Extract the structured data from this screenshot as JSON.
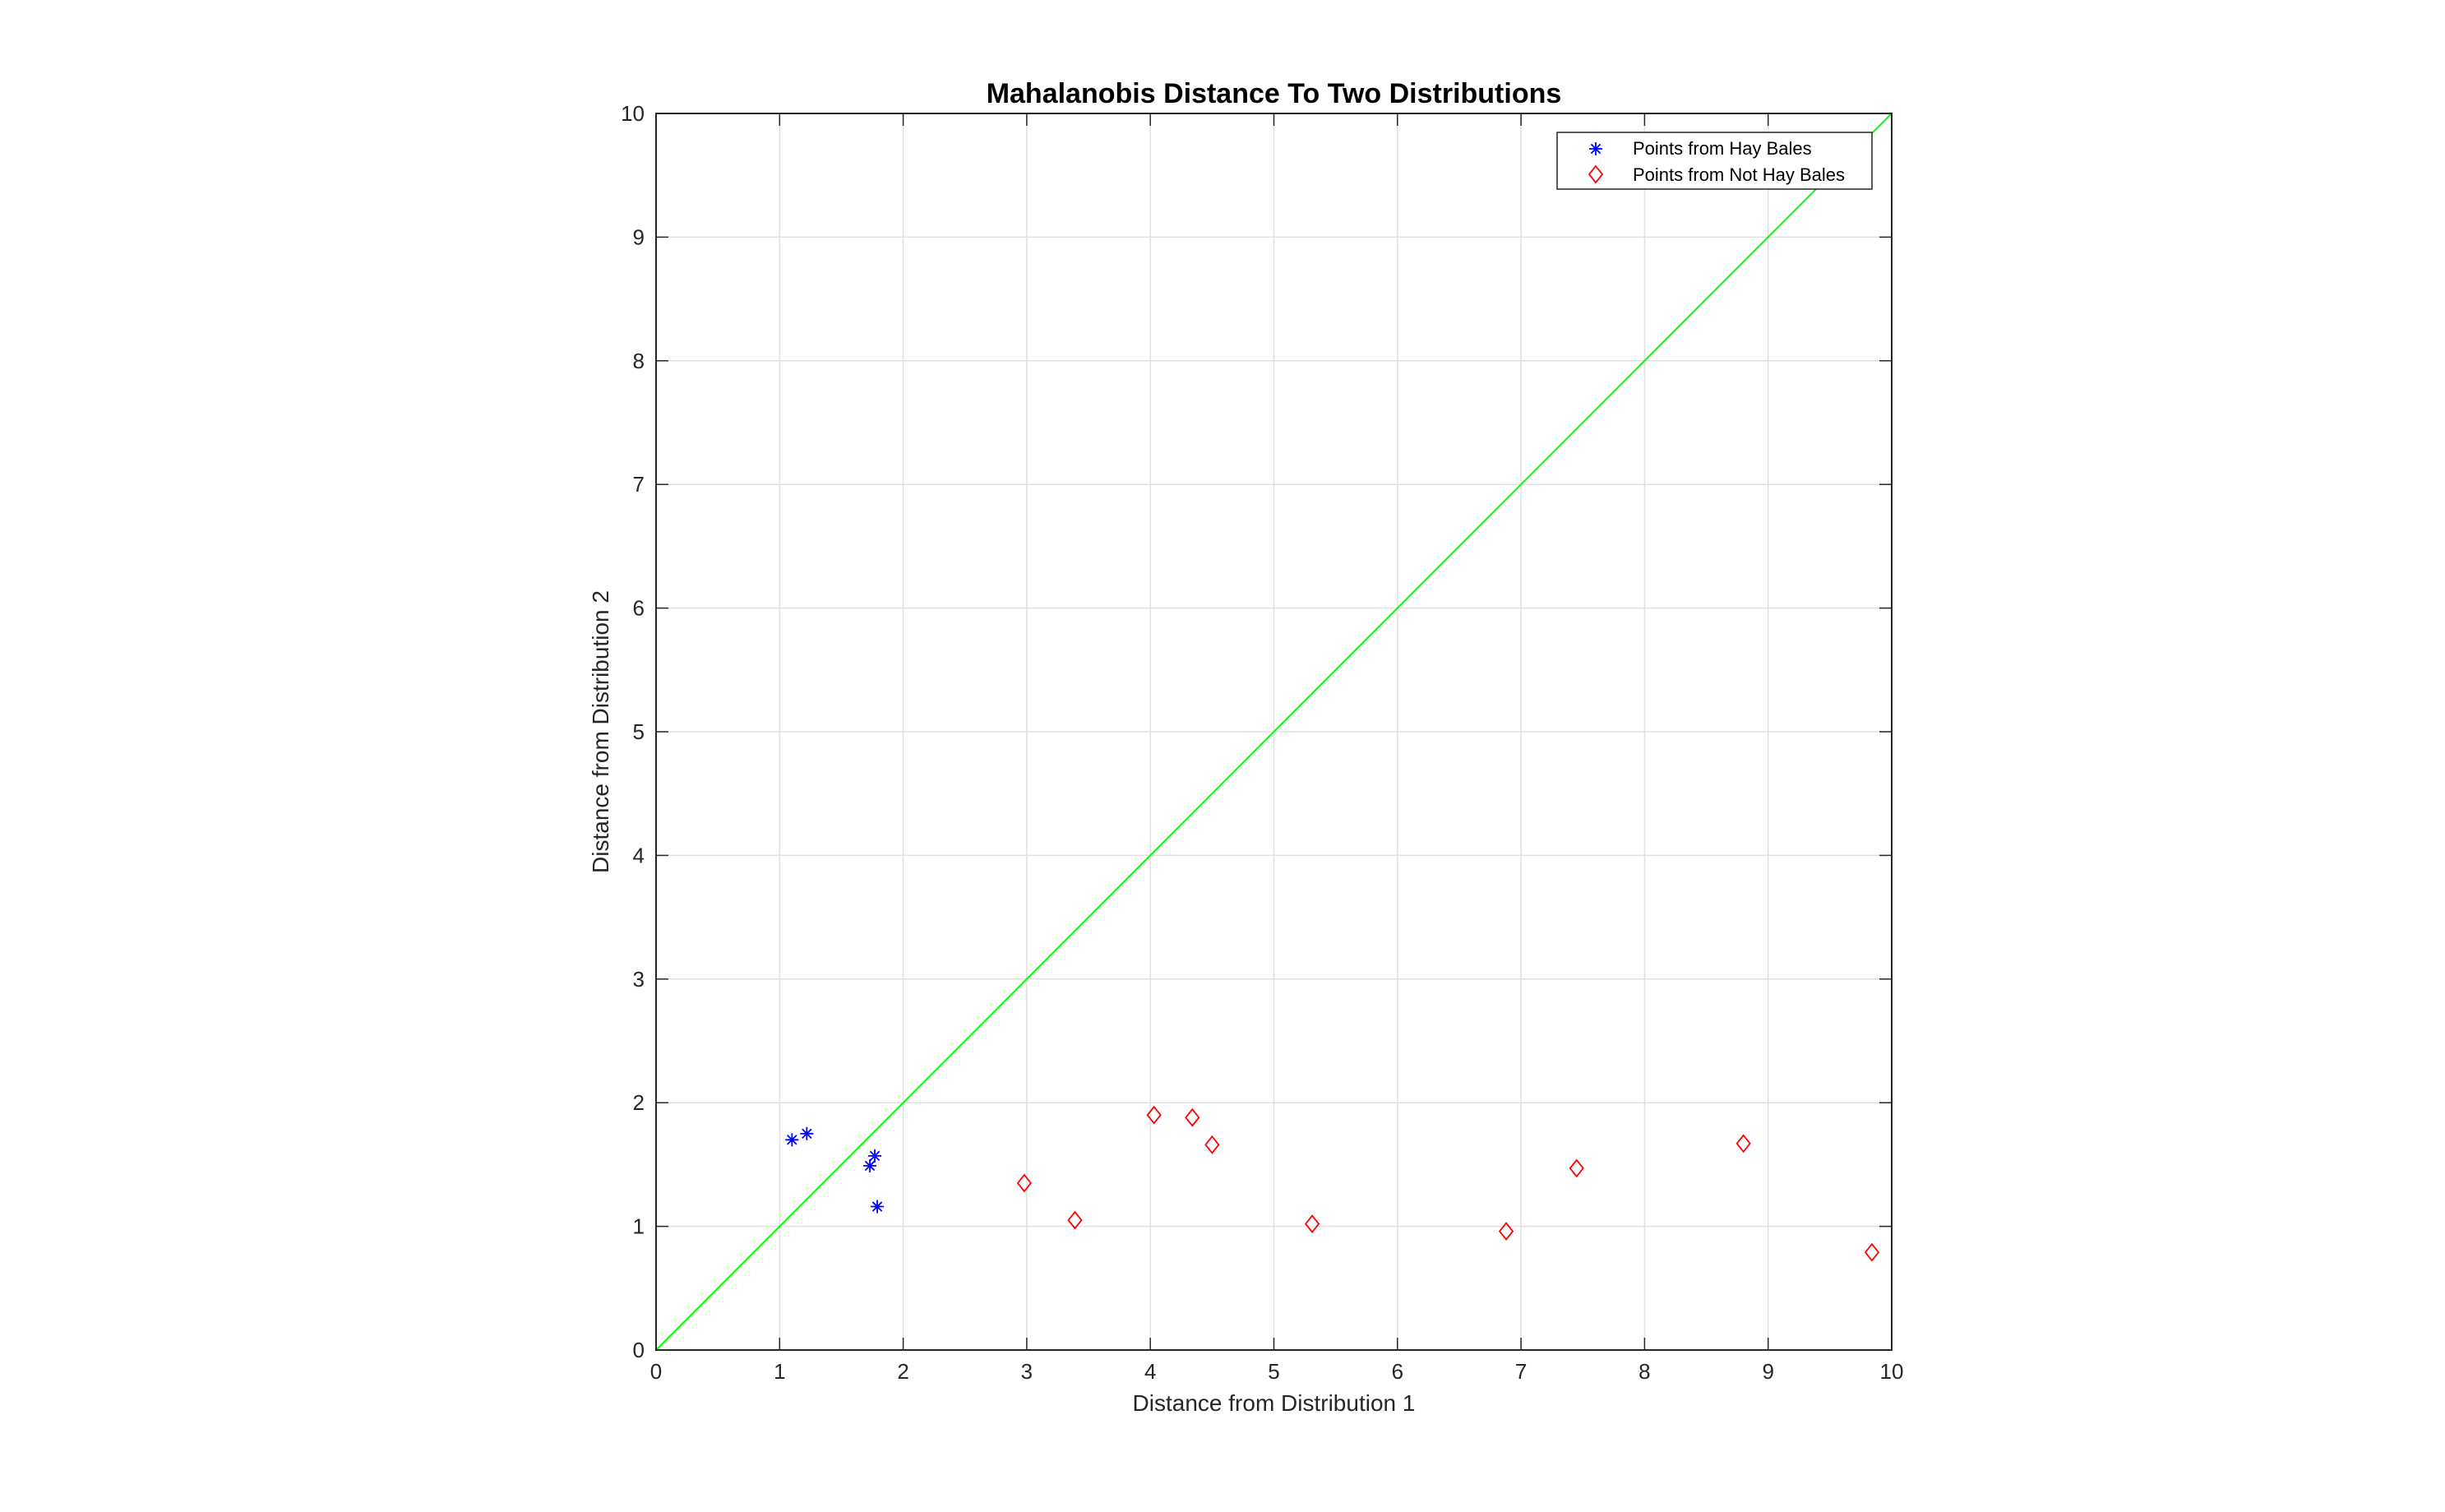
{
  "chart_data": {
    "type": "scatter",
    "title": "Mahalanobis Distance To Two Distributions",
    "xlabel": "Distance from Distribution 1",
    "ylabel": "Distance from Distribution 2",
    "xlim": [
      0,
      10
    ],
    "ylim": [
      0,
      10
    ],
    "xticks": [
      0,
      1,
      2,
      3,
      4,
      5,
      6,
      7,
      8,
      9,
      10
    ],
    "yticks": [
      0,
      1,
      2,
      3,
      4,
      5,
      6,
      7,
      8,
      9,
      10
    ],
    "grid": true,
    "legend_position": "top-right",
    "series": [
      {
        "name": "Points from Hay Bales",
        "marker": "asterisk",
        "color": "#0000ff",
        "points": [
          {
            "x": 1.1,
            "y": 1.7
          },
          {
            "x": 1.22,
            "y": 1.75
          },
          {
            "x": 1.73,
            "y": 1.49
          },
          {
            "x": 1.77,
            "y": 1.57
          },
          {
            "x": 1.79,
            "y": 1.16
          }
        ]
      },
      {
        "name": "Points from Not Hay Bales",
        "marker": "diamond",
        "color": "#ff0000",
        "points": [
          {
            "x": 2.98,
            "y": 1.35
          },
          {
            "x": 3.39,
            "y": 1.05
          },
          {
            "x": 4.03,
            "y": 1.9
          },
          {
            "x": 4.34,
            "y": 1.88
          },
          {
            "x": 4.5,
            "y": 1.66
          },
          {
            "x": 5.31,
            "y": 1.02
          },
          {
            "x": 6.88,
            "y": 0.96
          },
          {
            "x": 7.45,
            "y": 1.47
          },
          {
            "x": 8.8,
            "y": 1.67
          },
          {
            "x": 9.84,
            "y": 0.79
          }
        ]
      }
    ],
    "reference_line": {
      "color": "#00ff00",
      "from": {
        "x": 0,
        "y": 0
      },
      "to": {
        "x": 10,
        "y": 10
      }
    }
  }
}
